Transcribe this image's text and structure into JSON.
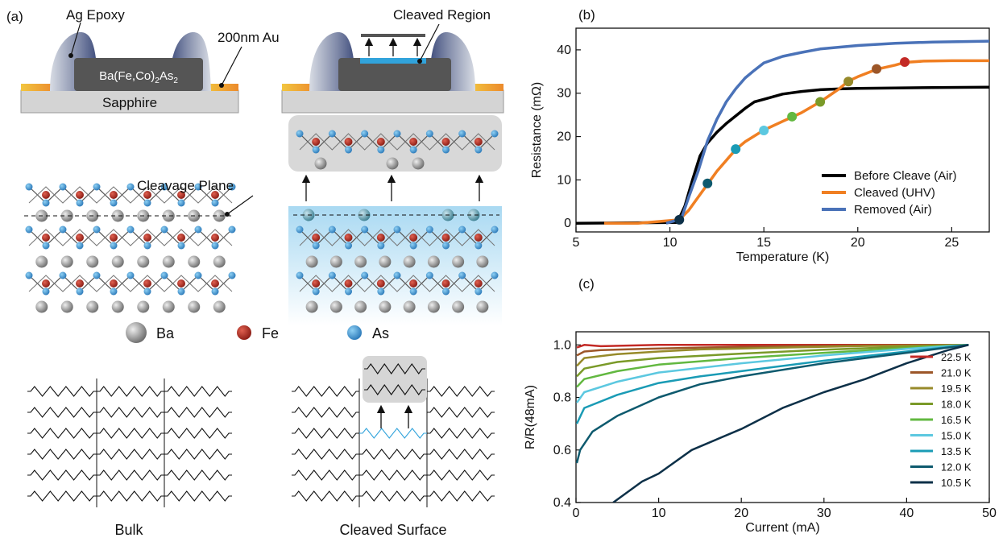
{
  "panel_a": {
    "label": "(a)",
    "ag_epoxy": "Ag Epoxy",
    "gold": "200nm Au",
    "cleaved_region": "Cleaved Region",
    "crystal": "Ba(Fe,Co)",
    "crystal_sub1": "2",
    "crystal_mid": "As",
    "crystal_sub2": "2",
    "substrate": "Sapphire",
    "cleavage_plane": "Cleavage Plane",
    "legend_ba": "Ba",
    "legend_fe": "Fe",
    "legend_as": "As",
    "bulk": "Bulk",
    "cleaved_surface": "Cleaved Surface"
  },
  "panel_b": {
    "label": "(b)"
  },
  "panel_c": {
    "label": "(c)"
  },
  "chart_data": [
    {
      "type": "line",
      "panel": "(b)",
      "xlabel": "Temperature (K)",
      "ylabel": "Resistance (mΩ)",
      "xlim": [
        5,
        27
      ],
      "ylim": [
        -2,
        45
      ],
      "xticks": [
        "5",
        "10",
        "15",
        "20",
        "25"
      ],
      "yticks": [
        "0",
        "10",
        "20",
        "30",
        "40"
      ],
      "legend_position": "lower-right",
      "series": [
        {
          "name": "Before Cleave (Air)",
          "color": "#000000",
          "x": [
            5,
            10.4,
            10.8,
            11.2,
            11.6,
            12,
            12.5,
            13,
            14,
            14.5,
            15,
            16,
            17,
            18,
            19,
            20,
            22,
            24,
            27
          ],
          "y": [
            0,
            0.2,
            4,
            10,
            15.5,
            18.5,
            21,
            23,
            26.5,
            28,
            28.6,
            29.8,
            30.4,
            30.8,
            31,
            31.1,
            31.2,
            31.3,
            31.4
          ]
        },
        {
          "name": "Cleaved (UHV)",
          "color": "#f07f22",
          "x": [
            6.5,
            8.3,
            10.5,
            11,
            11.5,
            12,
            12.5,
            13,
            13.5,
            14,
            15,
            16,
            16.5,
            17,
            18,
            19,
            19.5,
            20,
            21,
            22,
            22.5,
            23.5,
            25,
            27
          ],
          "y": [
            0,
            0,
            0.8,
            3,
            6,
            9,
            12,
            14.5,
            17,
            18.8,
            21.5,
            23.5,
            24.5,
            25.5,
            28,
            31,
            32.8,
            33.8,
            35.5,
            36.5,
            37.1,
            37.4,
            37.5,
            37.5
          ]
        },
        {
          "name": "Removed (Air)",
          "color": "#4a72b8",
          "x": [
            9.8,
            10.6,
            11,
            11.5,
            12,
            12.5,
            13,
            13.5,
            14,
            14.5,
            15,
            16,
            17,
            18,
            20,
            22,
            24,
            27
          ],
          "y": [
            0,
            1,
            6,
            12,
            19,
            24,
            28,
            31,
            33.5,
            35.3,
            37,
            38.5,
            39.4,
            40.2,
            41,
            41.5,
            41.8,
            42
          ]
        }
      ],
      "markers": {
        "x": [
          10.5,
          12,
          13.5,
          15,
          16.5,
          18,
          19.5,
          21,
          22.5
        ],
        "y": [
          0.8,
          9.2,
          17.1,
          21.4,
          24.6,
          28.0,
          32.7,
          35.6,
          37.2
        ],
        "colors": [
          "#0d3048",
          "#0e5a6e",
          "#1a9bb5",
          "#5cc8e0",
          "#62b840",
          "#7a9a28",
          "#978a2a",
          "#9c5628",
          "#c32a26"
        ]
      }
    },
    {
      "type": "line",
      "panel": "(c)",
      "xlabel": "Current (mA)",
      "ylabel": "R/R(48mA)",
      "xlim": [
        0,
        50
      ],
      "ylim": [
        0.4,
        1.05
      ],
      "xticks": [
        "0",
        "10",
        "20",
        "30",
        "40",
        "50"
      ],
      "yticks": [
        "0.4",
        "0.6",
        "0.8",
        "1.0"
      ],
      "legend_position": "right",
      "series": [
        {
          "name": "22.5 K",
          "color": "#c32a26",
          "x": [
            0.1,
            1,
            3,
            10,
            20,
            30,
            40,
            47.5
          ],
          "y": [
            0.99,
            1.0,
            0.995,
            1.0,
            1.0,
            1.0,
            1.0,
            1.0
          ]
        },
        {
          "name": "21.0 K",
          "color": "#9c5628",
          "x": [
            0.1,
            1,
            3,
            8,
            15,
            25,
            35,
            47.5
          ],
          "y": [
            0.96,
            0.975,
            0.98,
            0.985,
            0.99,
            0.995,
            0.998,
            1.0
          ]
        },
        {
          "name": "19.5 K",
          "color": "#978a2a",
          "x": [
            0.1,
            1,
            5,
            10,
            15,
            25,
            35,
            47.5
          ],
          "y": [
            0.92,
            0.95,
            0.965,
            0.975,
            0.983,
            0.99,
            0.996,
            1.0
          ]
        },
        {
          "name": "18.0 K",
          "color": "#7a9a28",
          "x": [
            0.1,
            1,
            5,
            10,
            20,
            30,
            40,
            47.5
          ],
          "y": [
            0.88,
            0.91,
            0.935,
            0.95,
            0.967,
            0.982,
            0.993,
            1.0
          ]
        },
        {
          "name": "16.5 K",
          "color": "#62b840",
          "x": [
            0.1,
            1,
            5,
            10,
            20,
            30,
            40,
            47.5
          ],
          "y": [
            0.84,
            0.87,
            0.9,
            0.925,
            0.95,
            0.97,
            0.988,
            1.0
          ]
        },
        {
          "name": "15.0 K",
          "color": "#5cc8e0",
          "x": [
            0.1,
            1,
            5,
            10,
            20,
            30,
            40,
            47.5
          ],
          "y": [
            0.78,
            0.82,
            0.86,
            0.895,
            0.93,
            0.96,
            0.985,
            1.0
          ]
        },
        {
          "name": "13.5 K",
          "color": "#1a9bb5",
          "x": [
            0.1,
            1,
            5,
            10,
            15,
            20,
            30,
            40,
            47.5
          ],
          "y": [
            0.7,
            0.76,
            0.81,
            0.855,
            0.88,
            0.9,
            0.94,
            0.975,
            1.0
          ]
        },
        {
          "name": "12.0 K",
          "color": "#0e5a6e",
          "x": [
            0.1,
            0.5,
            2,
            5,
            10,
            15,
            20,
            30,
            40,
            47.5
          ],
          "y": [
            0.55,
            0.6,
            0.67,
            0.73,
            0.8,
            0.85,
            0.88,
            0.93,
            0.97,
            1.0
          ]
        },
        {
          "name": "10.5 K",
          "color": "#0d3048",
          "x": [
            4.5,
            8,
            10,
            14,
            20,
            25,
            30,
            35,
            40,
            45,
            47.5
          ],
          "y": [
            0.4,
            0.48,
            0.51,
            0.6,
            0.68,
            0.76,
            0.82,
            0.87,
            0.93,
            0.98,
            1.0
          ]
        }
      ]
    }
  ]
}
